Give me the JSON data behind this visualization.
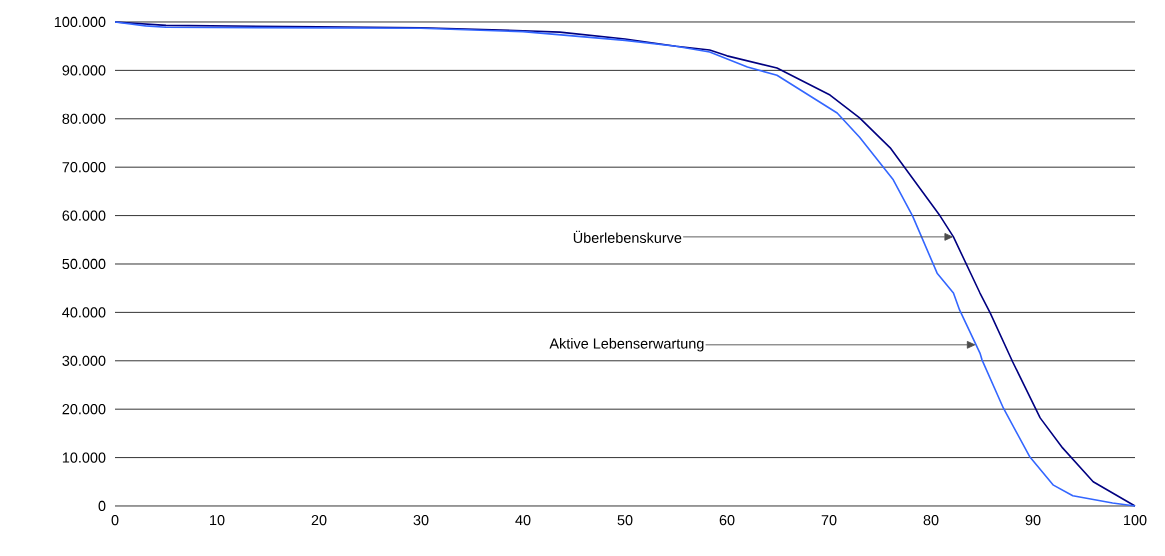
{
  "chart_data": {
    "type": "line",
    "xlim": [
      0,
      100
    ],
    "ylim": [
      0,
      100000
    ],
    "xticks": [
      0,
      10,
      20,
      30,
      40,
      50,
      60,
      70,
      80,
      90,
      100
    ],
    "yticks": [
      {
        "value": 0,
        "label": "0"
      },
      {
        "value": 10000,
        "label": "10.000"
      },
      {
        "value": 20000,
        "label": "20.000"
      },
      {
        "value": 30000,
        "label": "30.000"
      },
      {
        "value": 40000,
        "label": "40.000"
      },
      {
        "value": 50000,
        "label": "50.000"
      },
      {
        "value": 60000,
        "label": "60.000"
      },
      {
        "value": 70000,
        "label": "70.000"
      },
      {
        "value": 80000,
        "label": "80.000"
      },
      {
        "value": 90000,
        "label": "90.000"
      },
      {
        "value": 100000,
        "label": "100.000"
      }
    ],
    "grid": "y",
    "marker": "none",
    "line_style": "solid",
    "series": [
      {
        "color": "#000080",
        "x": [
          0,
          5,
          20,
          30,
          40,
          43.6,
          50,
          55,
          58.3,
          60,
          64.9,
          70.1,
          73,
          76,
          80.9,
          82.2,
          84.8,
          85.8,
          88,
          90.7,
          92.9,
          95.9,
          100
        ],
        "values": [
          100000,
          99300,
          99000,
          98800,
          98200,
          97900,
          96500,
          95000,
          94200,
          93000,
          90500,
          84900,
          80200,
          74000,
          59900,
          55600,
          44000,
          39900,
          29800,
          18200,
          12000,
          5000,
          0
        ]
      },
      {
        "color": "#3366ff",
        "x": [
          0,
          3,
          5,
          30,
          40,
          50,
          55,
          58.3,
          62,
          64.9,
          70.8,
          73,
          76.3,
          78.2,
          80.6,
          82.2,
          82.8,
          84.8,
          85,
          87.1,
          89.7,
          92,
          93.9,
          97.8,
          100
        ],
        "values": [
          100000,
          99200,
          98900,
          98700,
          98000,
          96200,
          95000,
          93800,
          90700,
          89000,
          81200,
          76200,
          67400,
          59900,
          48100,
          44000,
          40500,
          31600,
          30200,
          20200,
          10100,
          4300,
          2100,
          600,
          0
        ]
      }
    ],
    "annotations": [
      {
        "text": "Überlebenskurve",
        "x": 82.2,
        "y": 55600
      },
      {
        "text": "Aktive Lebenserwartung",
        "x": 84.4,
        "y": 33300
      }
    ]
  }
}
